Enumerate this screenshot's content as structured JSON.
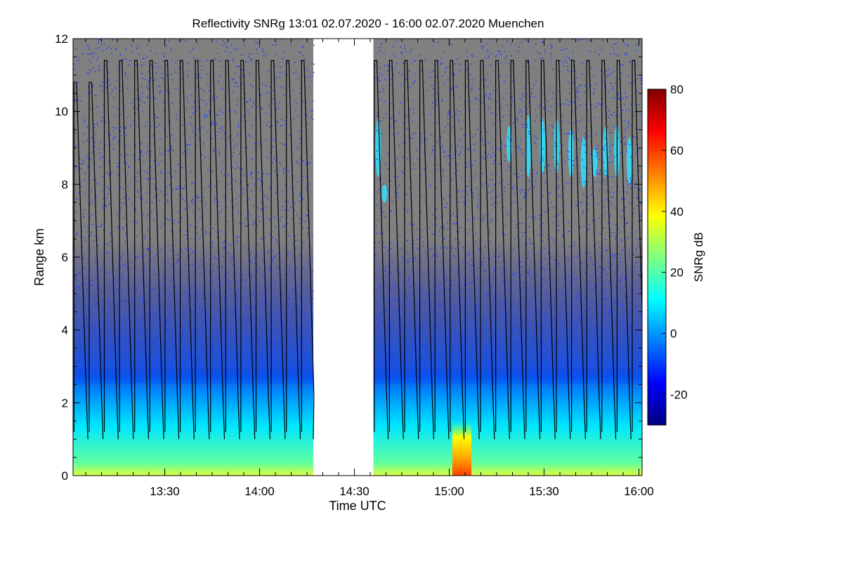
{
  "chart_data": {
    "type": "heatmap",
    "title": "Reflectivity SNRg   13:01 02.07.2020 - 16:00 02.07.2020 Muenchen",
    "xlabel": "Time UTC",
    "ylabel": "Range km",
    "x_range_minutes": [
      781,
      961
    ],
    "x_ticks": [
      {
        "minute": 810,
        "label": "13:30"
      },
      {
        "minute": 840,
        "label": "14:00"
      },
      {
        "minute": 870,
        "label": "14:30"
      },
      {
        "minute": 900,
        "label": "15:00"
      },
      {
        "minute": 930,
        "label": "15:30"
      },
      {
        "minute": 960,
        "label": "16:00"
      }
    ],
    "y_range": [
      0,
      12
    ],
    "y_ticks": [
      0,
      2,
      4,
      6,
      8,
      10,
      12
    ],
    "data_gap_minutes": [
      857,
      876
    ],
    "colorbar": {
      "label": "SNRg dB",
      "range": [
        -30,
        80
      ],
      "ticks": [
        -20,
        0,
        20,
        40,
        60,
        80
      ],
      "colormap": [
        "#00007f",
        "#0000ff",
        "#007fff",
        "#00ffff",
        "#7fff7f",
        "#ffff00",
        "#ff7f00",
        "#ff0000",
        "#7f0000"
      ]
    },
    "background_color": "#808080",
    "scan_envelope_color": "#000000",
    "high_signal_feature": {
      "minute_range": [
        901,
        907
      ],
      "range_km": [
        0,
        1.5
      ],
      "snr_db": 60
    }
  }
}
